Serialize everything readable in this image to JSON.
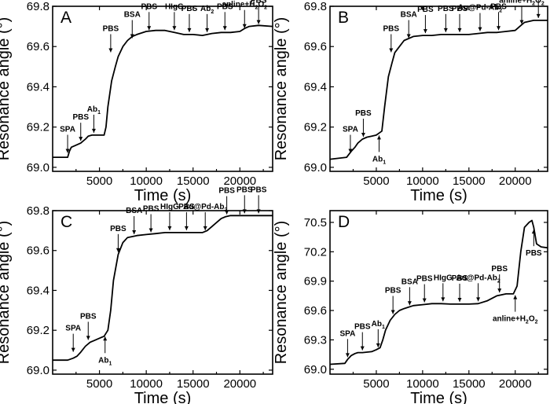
{
  "chart_data": [
    {
      "type": "line",
      "panel": "A",
      "xlabel": "Time (s)",
      "ylabel": "Resonance angle (°)",
      "xlim": [
        0,
        23500
      ],
      "ylim": [
        68.98,
        69.8
      ],
      "xticks": [
        5000,
        10000,
        15000,
        20000
      ],
      "xticklabels": [
        "5000",
        "10000",
        "15000",
        "20000"
      ],
      "yticks": [
        69.0,
        69.2,
        69.4,
        69.6,
        69.8
      ],
      "yticklabels": [
        "69.0",
        "69.2",
        "69.4",
        "69.6",
        "69.8"
      ],
      "series": [
        {
          "x": [
            0,
            1600,
            1800,
            2000,
            2500,
            3000,
            3500,
            3800,
            4200,
            5000,
            5500,
            5700,
            5900,
            6300,
            6700,
            7000,
            7500,
            8000,
            8500,
            9000,
            10000,
            11000,
            12000,
            13000,
            14000,
            15000,
            16000,
            16500,
            17000,
            18000,
            19000,
            20000,
            20500,
            21000,
            22000,
            23500
          ],
          "y": [
            69.05,
            69.05,
            69.08,
            69.1,
            69.11,
            69.12,
            69.14,
            69.155,
            69.16,
            69.16,
            69.16,
            69.2,
            69.3,
            69.43,
            69.5,
            69.55,
            69.6,
            69.63,
            69.65,
            69.66,
            69.675,
            69.68,
            69.68,
            69.67,
            69.66,
            69.66,
            69.655,
            69.66,
            69.665,
            69.67,
            69.67,
            69.675,
            69.69,
            69.7,
            69.705,
            69.7
          ]
        }
      ],
      "annotations": [
        {
          "text": "SPA",
          "x": 1600,
          "y": 69.06
        },
        {
          "text": "PBS",
          "x": 3000,
          "y": 69.12
        },
        {
          "text": "Ab",
          "sub": "1",
          "x": 4400,
          "y": 69.16
        },
        {
          "text": "PBS",
          "x": 6200,
          "y": 69.56
        },
        {
          "text": "BSA",
          "x": 8500,
          "y": 69.63
        },
        {
          "text": "PBS",
          "x": 10300,
          "y": 69.67
        },
        {
          "text": "HIgG",
          "x": 13000,
          "y": 69.67
        },
        {
          "text": "PBS",
          "x": 14600,
          "y": 69.66
        },
        {
          "text": "Ab",
          "sub": "2",
          "x": 16500,
          "y": 69.66
        },
        {
          "text": "PBS",
          "x": 18400,
          "y": 69.67
        },
        {
          "text": "anline+H",
          "sub": "2",
          "tail": "O",
          "sub2": "2",
          "x": 20500,
          "y": 69.68
        },
        {
          "text": "PBS",
          "x": 22000,
          "y": 69.7
        }
      ]
    },
    {
      "type": "line",
      "panel": "B",
      "xlabel": "Time (s)",
      "ylabel": "Resonance angle (°)",
      "xlim": [
        0,
        23500
      ],
      "ylim": [
        68.98,
        69.8
      ],
      "xticks": [
        5000,
        10000,
        15000,
        20000
      ],
      "xticklabels": [
        "5000",
        "10000",
        "15000",
        "20000"
      ],
      "yticks": [
        69.0,
        69.2,
        69.4,
        69.6,
        69.8
      ],
      "yticklabels": [
        "69.0",
        "69.2",
        "69.4",
        "69.6",
        "69.8"
      ],
      "series": [
        {
          "x": [
            0,
            1800,
            2300,
            2700,
            3000,
            3500,
            4000,
            4500,
            5000,
            5300,
            5600,
            5900,
            6300,
            6700,
            7000,
            7500,
            8000,
            9000,
            10000,
            11000,
            12000,
            13000,
            14000,
            15000,
            16000,
            17000,
            18000,
            19000,
            20000,
            20500,
            21000,
            22000,
            23500
          ],
          "y": [
            69.04,
            69.05,
            69.08,
            69.1,
            69.12,
            69.14,
            69.15,
            69.155,
            69.16,
            69.17,
            69.18,
            69.3,
            69.45,
            69.52,
            69.57,
            69.6,
            69.63,
            69.65,
            69.655,
            69.655,
            69.66,
            69.66,
            69.66,
            69.66,
            69.665,
            69.67,
            69.67,
            69.675,
            69.68,
            69.7,
            69.72,
            69.73,
            69.73
          ]
        }
      ],
      "annotations": [
        {
          "text": "SPA",
          "x": 2200,
          "y": 69.06
        },
        {
          "text": "PBS",
          "x": 3600,
          "y": 69.14
        },
        {
          "text": "Ab",
          "sub": "1",
          "x": 5300,
          "y": 69.17,
          "below": true
        },
        {
          "text": "PBS",
          "x": 6600,
          "y": 69.56
        },
        {
          "text": "BSA",
          "x": 8500,
          "y": 69.63
        },
        {
          "text": "PBS",
          "x": 10300,
          "y": 69.655
        },
        {
          "text": "PBS",
          "x": 12500,
          "y": 69.66,
          "above": true
        },
        {
          "text": "PBS",
          "x": 14000,
          "y": 69.66
        },
        {
          "text": "Au@Pd-Ab",
          "sub": "2",
          "x": 16200,
          "y": 69.665
        },
        {
          "text": "PBS",
          "x": 18200,
          "y": 69.67,
          "above": true
        },
        {
          "text": "anline+H",
          "sub": "2",
          "tail": "O",
          "sub2": "2",
          "x": 20700,
          "y": 69.7
        },
        {
          "text": "PBS",
          "x": 22500,
          "y": 69.73
        }
      ]
    },
    {
      "type": "line",
      "panel": "C",
      "xlabel": "Time (s)",
      "ylabel": "Resonance angle (°)",
      "xlim": [
        0,
        23500
      ],
      "ylim": [
        68.98,
        69.8
      ],
      "xticks": [
        5000,
        10000,
        15000,
        20000
      ],
      "xticklabels": [
        "5000",
        "10000",
        "15000",
        "20000"
      ],
      "yticks": [
        69.0,
        69.2,
        69.4,
        69.6,
        69.8
      ],
      "yticklabels": [
        "69.0",
        "69.2",
        "69.4",
        "69.6",
        "69.8"
      ],
      "series": [
        {
          "x": [
            0,
            1600,
            2200,
            2600,
            3000,
            3500,
            4000,
            4500,
            5000,
            5500,
            5900,
            6200,
            6500,
            7000,
            7500,
            8000,
            8500,
            9000,
            10000,
            11000,
            12000,
            13000,
            14000,
            15000,
            16000,
            16500,
            17000,
            17500,
            18000,
            18500,
            19000,
            20000,
            21000,
            22000,
            23500
          ],
          "y": [
            69.05,
            69.05,
            69.06,
            69.07,
            69.09,
            69.12,
            69.14,
            69.15,
            69.16,
            69.17,
            69.2,
            69.3,
            69.45,
            69.58,
            69.64,
            69.665,
            69.67,
            69.675,
            69.68,
            69.685,
            69.69,
            69.69,
            69.69,
            69.69,
            69.69,
            69.7,
            69.72,
            69.74,
            69.76,
            69.77,
            69.775,
            69.775,
            69.775,
            69.775,
            69.775
          ]
        }
      ],
      "annotations": [
        {
          "text": "SPA",
          "x": 2200,
          "y": 69.08
        },
        {
          "text": "PBS",
          "x": 3800,
          "y": 69.14
        },
        {
          "text": "Ab",
          "sub": "1",
          "x": 5600,
          "y": 69.18,
          "below": true
        },
        {
          "text": "PBS",
          "x": 7000,
          "y": 69.58
        },
        {
          "text": "BSA",
          "x": 8700,
          "y": 69.67
        },
        {
          "text": "PBS",
          "x": 10500,
          "y": 69.68
        },
        {
          "text": "HIgG",
          "x": 12500,
          "y": 69.69,
          "above": true
        },
        {
          "text": "PBS",
          "x": 14300,
          "y": 69.69
        },
        {
          "text": "Au@Pd-Ab",
          "sub": "2",
          "x": 16300,
          "y": 69.69
        },
        {
          "text": "PBS",
          "x": 18600,
          "y": 69.77
        },
        {
          "text": "PBS",
          "x": 20500,
          "y": 69.775
        },
        {
          "text": "PBS",
          "x": 22000,
          "y": 69.775
        }
      ]
    },
    {
      "type": "line",
      "panel": "D",
      "xlabel": "Time (s)",
      "ylabel": "Resonance angle (°)",
      "xlim": [
        0,
        23500
      ],
      "ylim": [
        68.95,
        70.62
      ],
      "xticks": [
        5000,
        10000,
        15000,
        20000
      ],
      "xticklabels": [
        "5000",
        "10000",
        "15000",
        "20000"
      ],
      "yticks": [
        69.0,
        69.3,
        69.6,
        69.9,
        70.2,
        70.5
      ],
      "yticklabels": [
        "69.0",
        "69.3",
        "69.6",
        "69.9",
        "70.2",
        "70.5"
      ],
      "series": [
        {
          "x": [
            0,
            1600,
            1900,
            2300,
            2700,
            3000,
            3500,
            4000,
            4500,
            5000,
            5400,
            5700,
            6000,
            6500,
            7000,
            7500,
            8000,
            9000,
            10000,
            11000,
            12000,
            13000,
            14000,
            15000,
            16000,
            17000,
            18000,
            19000,
            19800,
            20200,
            20600,
            21000,
            21500,
            21800,
            22000,
            22300,
            22800,
            23500
          ],
          "y": [
            69.05,
            69.06,
            69.1,
            69.14,
            69.16,
            69.17,
            69.17,
            69.175,
            69.18,
            69.2,
            69.22,
            69.3,
            69.4,
            69.5,
            69.56,
            69.6,
            69.62,
            69.65,
            69.66,
            69.67,
            69.67,
            69.665,
            69.665,
            69.665,
            69.67,
            69.7,
            69.75,
            69.77,
            69.77,
            69.85,
            70.2,
            70.45,
            70.5,
            70.52,
            70.45,
            70.28,
            70.25,
            70.24
          ]
        }
      ],
      "annotations": [
        {
          "text": "SPA",
          "x": 1900,
          "y": 69.1
        },
        {
          "text": "PBS",
          "x": 3500,
          "y": 69.17
        },
        {
          "text": "Ab",
          "sub": "1",
          "x": 5200,
          "y": 69.2
        },
        {
          "text": "PBS",
          "x": 6800,
          "y": 69.54
        },
        {
          "text": "BSA",
          "x": 8600,
          "y": 69.63
        },
        {
          "text": "PBS",
          "x": 10200,
          "y": 69.66
        },
        {
          "text": "HIgG",
          "x": 12200,
          "y": 69.67
        },
        {
          "text": "PBS",
          "x": 14000,
          "y": 69.665
        },
        {
          "text": "Au@Pd-Ab",
          "sub": "2",
          "x": 16000,
          "y": 69.67
        },
        {
          "text": "PBS",
          "x": 18300,
          "y": 69.76
        },
        {
          "text": "anline+H",
          "sub": "2",
          "tail": "O",
          "sub2": "2",
          "x": 20000,
          "y": 69.78,
          "below": true
        },
        {
          "text": "PBS",
          "x": 22000,
          "y": 70.45,
          "below": true
        }
      ]
    }
  ]
}
